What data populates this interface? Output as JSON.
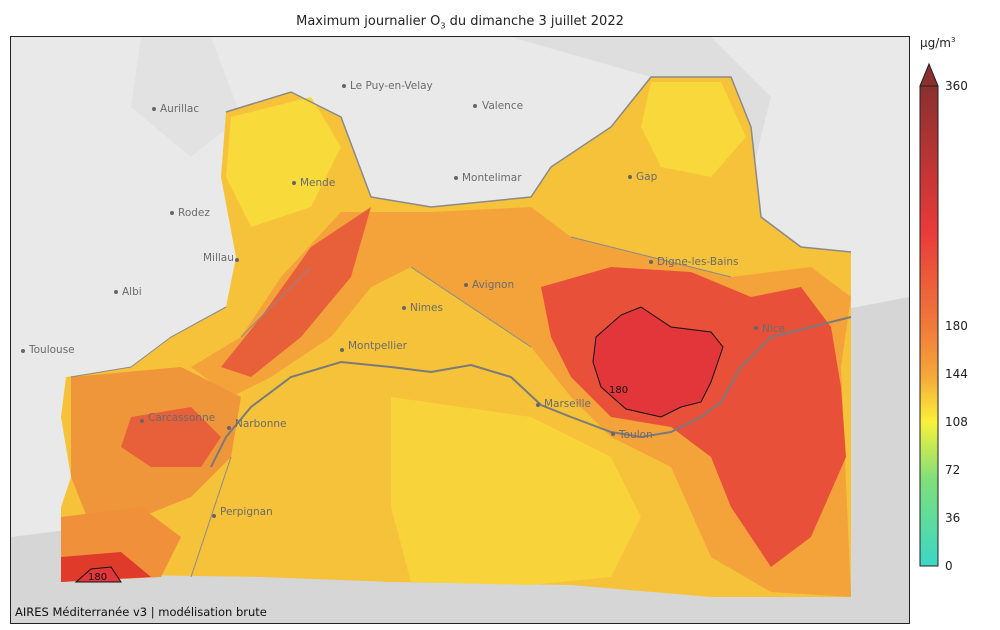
{
  "title": {
    "prefix": "Maximum journalier O",
    "sub": "3",
    "suffix": " du dimanche 3 juillet 2022"
  },
  "credit": "AIRES Méditerranée v3 | modélisation brute",
  "colorbar": {
    "unit": "µg/m",
    "unit_sup": "3",
    "ticks": [
      "360",
      "180",
      "144",
      "108",
      "72",
      "36",
      "0"
    ],
    "tick_values": [
      360,
      180,
      144,
      108,
      72,
      36,
      0
    ],
    "colors": {
      "low": "#3cd6c6",
      "mid": "#f9f13a",
      "orange": "#f6a53a",
      "red": "#e83a3a",
      "dark": "#8b2f2f"
    }
  },
  "map": {
    "cities": [
      {
        "name": "Le Puy-en-Velay"
      },
      {
        "name": "Aurillac"
      },
      {
        "name": "Valence"
      },
      {
        "name": "Mende"
      },
      {
        "name": "Montelimar"
      },
      {
        "name": "Gap"
      },
      {
        "name": "Rodez"
      },
      {
        "name": "Millau"
      },
      {
        "name": "Digne-les-Bains"
      },
      {
        "name": "Albi"
      },
      {
        "name": "Avignon"
      },
      {
        "name": "Nimes"
      },
      {
        "name": "Nice"
      },
      {
        "name": "Toulouse"
      },
      {
        "name": "Montpellier"
      },
      {
        "name": "Marseille"
      },
      {
        "name": "Carcassonne"
      },
      {
        "name": "Narbonne"
      },
      {
        "name": "Toulon"
      },
      {
        "name": "Perpignan"
      }
    ],
    "contour_labels": [
      "180",
      "180"
    ]
  }
}
